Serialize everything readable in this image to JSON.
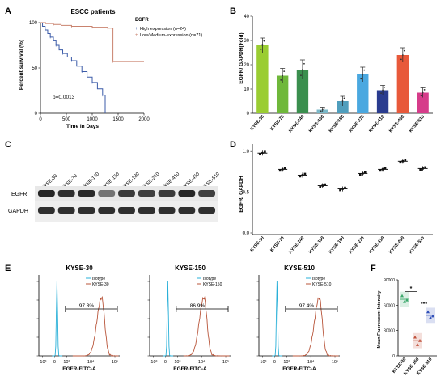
{
  "panel_labels": [
    "A",
    "B",
    "C",
    "D",
    "E",
    "F"
  ],
  "chart_data": [
    {
      "panel": "A",
      "type": "line",
      "title": "ESCC patients",
      "xlabel": "Time in Days",
      "ylabel": "Percent survival (%)",
      "xlim": [
        0,
        2000
      ],
      "ylim": [
        0,
        100
      ],
      "xticks": [
        0,
        500,
        1000,
        1500,
        2000
      ],
      "yticks": [
        0,
        50,
        100
      ],
      "legend_title": "EGFR",
      "annotation": "p=0.0013",
      "series": [
        {
          "name": "High expression (n=24)",
          "color": "#3b5ba8",
          "points": [
            [
              0,
              100
            ],
            [
              40,
              96
            ],
            [
              90,
              92
            ],
            [
              140,
              88
            ],
            [
              190,
              84
            ],
            [
              250,
              80
            ],
            [
              300,
              75
            ],
            [
              360,
              70
            ],
            [
              430,
              66
            ],
            [
              520,
              62
            ],
            [
              600,
              58
            ],
            [
              700,
              52
            ],
            [
              800,
              46
            ],
            [
              900,
              40
            ],
            [
              1000,
              34
            ],
            [
              1100,
              27
            ],
            [
              1200,
              20
            ],
            [
              1250,
              10
            ],
            [
              1250,
              0
            ]
          ]
        },
        {
          "name": "Low/Medium-expression (n=71)",
          "color": "#c9826e",
          "points": [
            [
              0,
              100
            ],
            [
              100,
              99
            ],
            [
              250,
              98
            ],
            [
              400,
              97
            ],
            [
              600,
              96
            ],
            [
              800,
              96
            ],
            [
              1000,
              95
            ],
            [
              1200,
              95
            ],
            [
              1300,
              94
            ],
            [
              1400,
              94
            ],
            [
              1400,
              57
            ],
            [
              2000,
              57
            ]
          ]
        }
      ]
    },
    {
      "panel": "B",
      "type": "bar",
      "ylabel": "EGFR/ GAPDH(Fold)",
      "ylim": [
        0,
        40
      ],
      "yticks": [
        0,
        10,
        20,
        30,
        40
      ],
      "categories": [
        "KYSE-30",
        "KYSE-70",
        "KYSE-140",
        "KYSE-150",
        "KYSE-180",
        "KYSE-270",
        "KYSE-410",
        "KYSE-450",
        "KYSE-510"
      ],
      "values": [
        28,
        15.5,
        18,
        1.5,
        5,
        16,
        9.5,
        24,
        8.5
      ],
      "errors": [
        3,
        3,
        4,
        1,
        2,
        3,
        2,
        3,
        2
      ],
      "colors": [
        "#9acd32",
        "#6fb83a",
        "#3a8f4e",
        "#7ab8c8",
        "#4f9ebd",
        "#4aa8e0",
        "#2a3c8f",
        "#e8593a",
        "#d63c8a"
      ]
    },
    {
      "panel": "C",
      "type": "table",
      "columns": [
        "KYSE-30",
        "KYSE-70",
        "KYSE-140",
        "KYSE-150",
        "KYSE-180",
        "KYSE-270",
        "KYSE-410",
        "KYSE-450",
        "KYSE-510"
      ],
      "rows": [
        "EGFR",
        "GAPDH"
      ]
    },
    {
      "panel": "D",
      "type": "scatter",
      "ylabel": "EGFR/ GAPDH",
      "ylim": [
        0,
        1.0
      ],
      "yticks": [
        0.0,
        0.5,
        1.0
      ],
      "yticklabels": [
        "0.0",
        "0.5",
        "1.0"
      ],
      "categories": [
        "KYSE-30",
        "KYSE-70",
        "KYSE-140",
        "KYSE-150",
        "KYSE-180",
        "KYSE-270",
        "KYSE-410",
        "KYSE-450",
        "KYSE-510"
      ],
      "values": [
        0.98,
        0.78,
        0.71,
        0.58,
        0.54,
        0.73,
        0.78,
        0.88,
        0.79
      ]
    },
    {
      "panel": "E1",
      "type": "area",
      "title": "KYSE-30",
      "xlabel": "EGFR-FITC-A",
      "xticks": [
        "-10³",
        "0",
        "10³",
        "10⁴",
        "10⁵"
      ],
      "gate_label": "97.3%",
      "legend": [
        "Isotype",
        "KYSE-30"
      ],
      "isotype_peak": 0.2,
      "sample_peak": 3.9
    },
    {
      "panel": "E2",
      "type": "area",
      "title": "KYSE-150",
      "xlabel": "EGFR-FITC-A",
      "xticks": [
        "-10³",
        "0",
        "10³",
        "10⁴",
        "10⁵"
      ],
      "gate_label": "86.9%",
      "legend": [
        "Isotype",
        "KYSE-150"
      ],
      "isotype_peak": 0.2,
      "sample_peak": 3.2
    },
    {
      "panel": "E3",
      "type": "area",
      "title": "KYSE-510",
      "xlabel": "EGFR-FITC-A",
      "xticks": [
        "-10³",
        "0",
        "10³",
        "10⁴",
        "10⁵"
      ],
      "gate_label": "97.4%",
      "legend": [
        "Isotype",
        "KYSE-510"
      ],
      "isotype_peak": 0.2,
      "sample_peak": 3.7
    },
    {
      "panel": "F",
      "type": "scatter",
      "ylabel": "Mean Fluorescent Intensity",
      "ylim": [
        0,
        90000
      ],
      "yticks": [
        0,
        30000,
        60000,
        90000
      ],
      "categories": [
        "KYSE-30",
        "KYSE-150",
        "KYSE-510"
      ],
      "colors": [
        "#3aa86a",
        "#c0503a",
        "#3050b8"
      ],
      "points": [
        [
          71000,
          64000,
          66000
        ],
        [
          22000,
          13000,
          18000
        ],
        [
          52000,
          45000,
          47000
        ]
      ],
      "means": [
        67000,
        18000,
        48000
      ],
      "sig": [
        {
          "pair": [
            0,
            1
          ],
          "label": "*"
        },
        {
          "pair": [
            1,
            2
          ],
          "label": "***"
        }
      ]
    }
  ]
}
